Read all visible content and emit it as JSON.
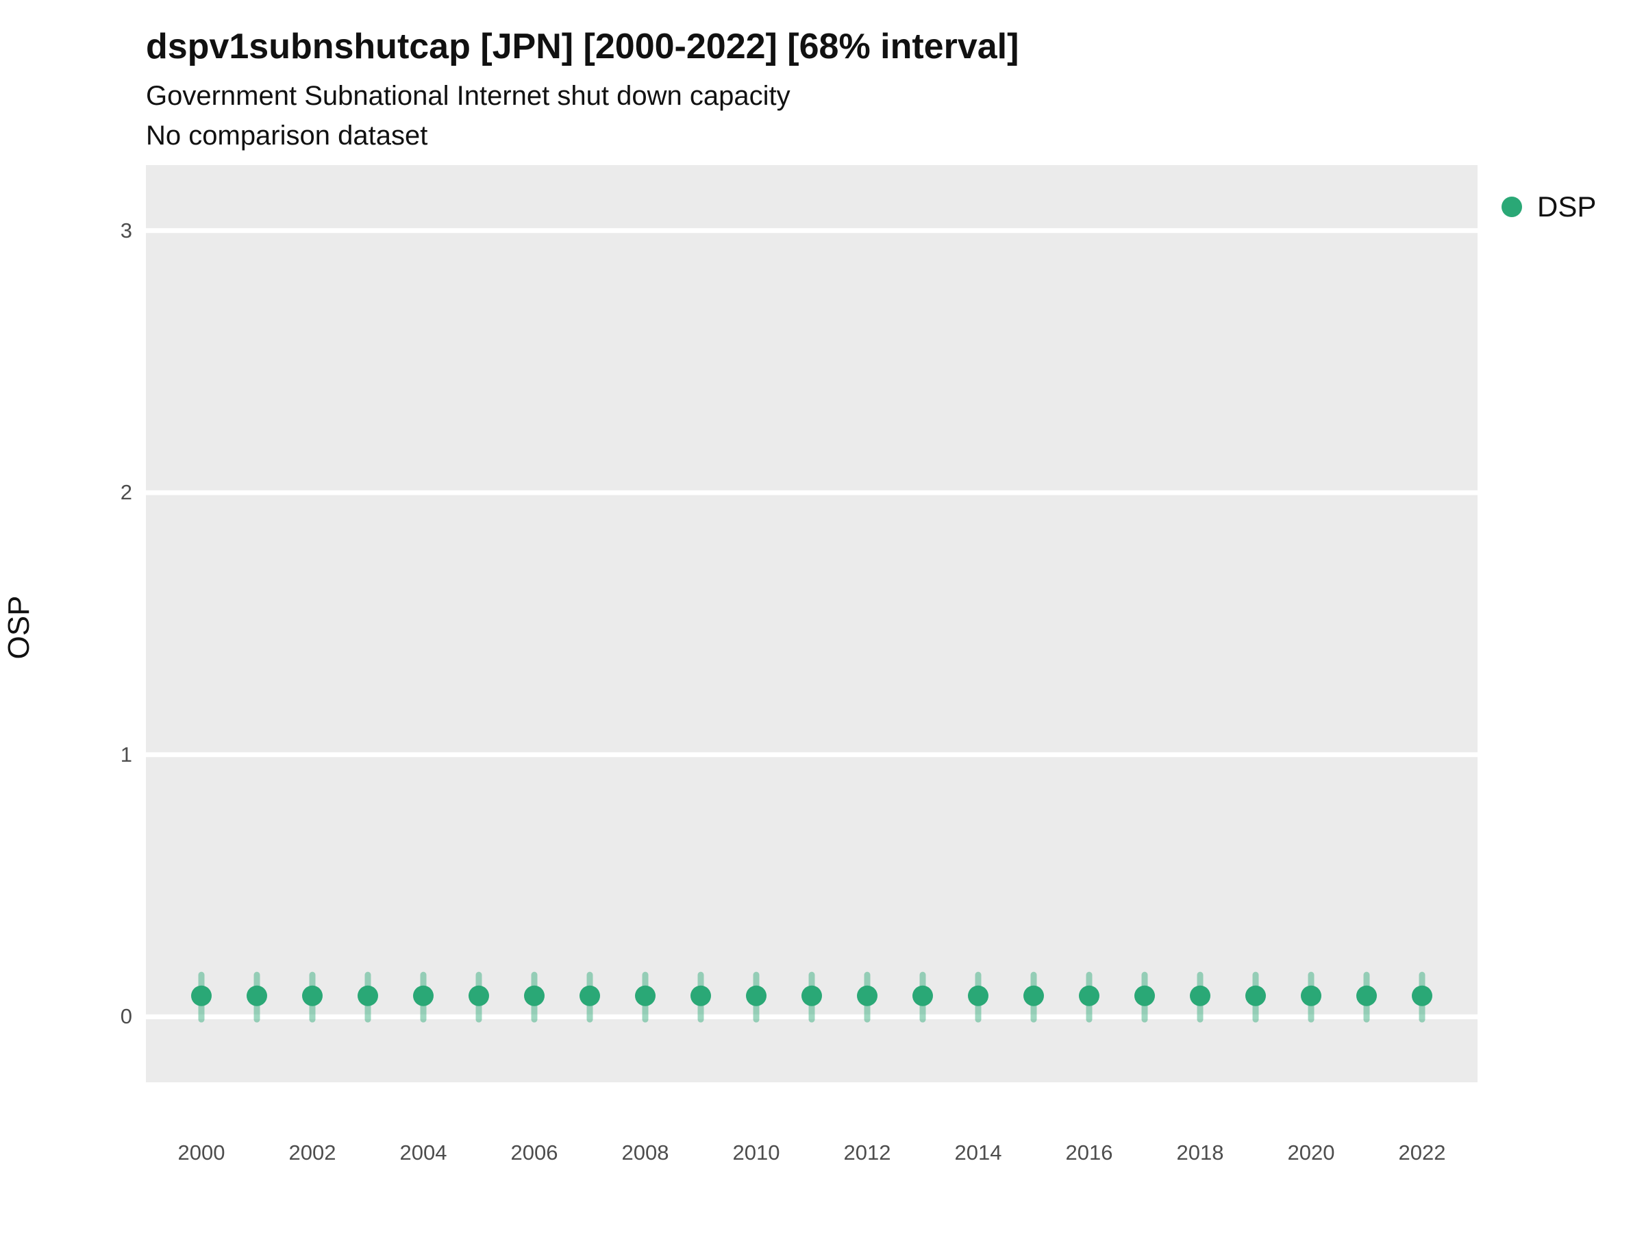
{
  "chart_data": {
    "type": "scatter",
    "title": "dspv1subnshutcap [JPN] [2000-2022] [68% interval]",
    "subtitle": "Government Subnational Internet shut down capacity",
    "note": "No comparison dataset",
    "xlabel": "",
    "ylabel": "OSP",
    "xlim": [
      1999,
      2023
    ],
    "ylim": [
      -0.25,
      3.25
    ],
    "xticks": [
      2000,
      2002,
      2004,
      2006,
      2008,
      2010,
      2012,
      2014,
      2016,
      2018,
      2020,
      2022
    ],
    "yticks": [
      0,
      1,
      2,
      3
    ],
    "grid": "major-horizontal-white-on-gray",
    "panel_color": "#ebebeb",
    "grid_color": "#ffffff",
    "series": [
      {
        "name": "DSP",
        "color": "#2aa876",
        "interval_opacity": 0.45,
        "x": [
          2000,
          2001,
          2002,
          2003,
          2004,
          2005,
          2006,
          2007,
          2008,
          2009,
          2010,
          2011,
          2012,
          2013,
          2014,
          2015,
          2016,
          2017,
          2018,
          2019,
          2020,
          2021,
          2022
        ],
        "y": [
          0.08,
          0.08,
          0.08,
          0.08,
          0.08,
          0.08,
          0.08,
          0.08,
          0.08,
          0.08,
          0.08,
          0.08,
          0.08,
          0.08,
          0.08,
          0.08,
          0.08,
          0.08,
          0.08,
          0.08,
          0.08,
          0.08,
          0.08
        ],
        "lo": [
          -0.01,
          -0.01,
          -0.01,
          -0.01,
          -0.01,
          -0.01,
          -0.01,
          -0.01,
          -0.01,
          -0.01,
          -0.01,
          -0.01,
          -0.01,
          -0.01,
          -0.01,
          -0.01,
          -0.01,
          -0.01,
          -0.01,
          -0.01,
          -0.01,
          -0.01,
          -0.01
        ],
        "hi": [
          0.16,
          0.16,
          0.16,
          0.16,
          0.16,
          0.16,
          0.16,
          0.16,
          0.16,
          0.16,
          0.16,
          0.16,
          0.16,
          0.16,
          0.16,
          0.16,
          0.16,
          0.16,
          0.16,
          0.16,
          0.16,
          0.16,
          0.16
        ]
      }
    ],
    "legend": {
      "position": "right",
      "entries": [
        {
          "label": "DSP",
          "color": "#2aa876"
        }
      ]
    }
  }
}
